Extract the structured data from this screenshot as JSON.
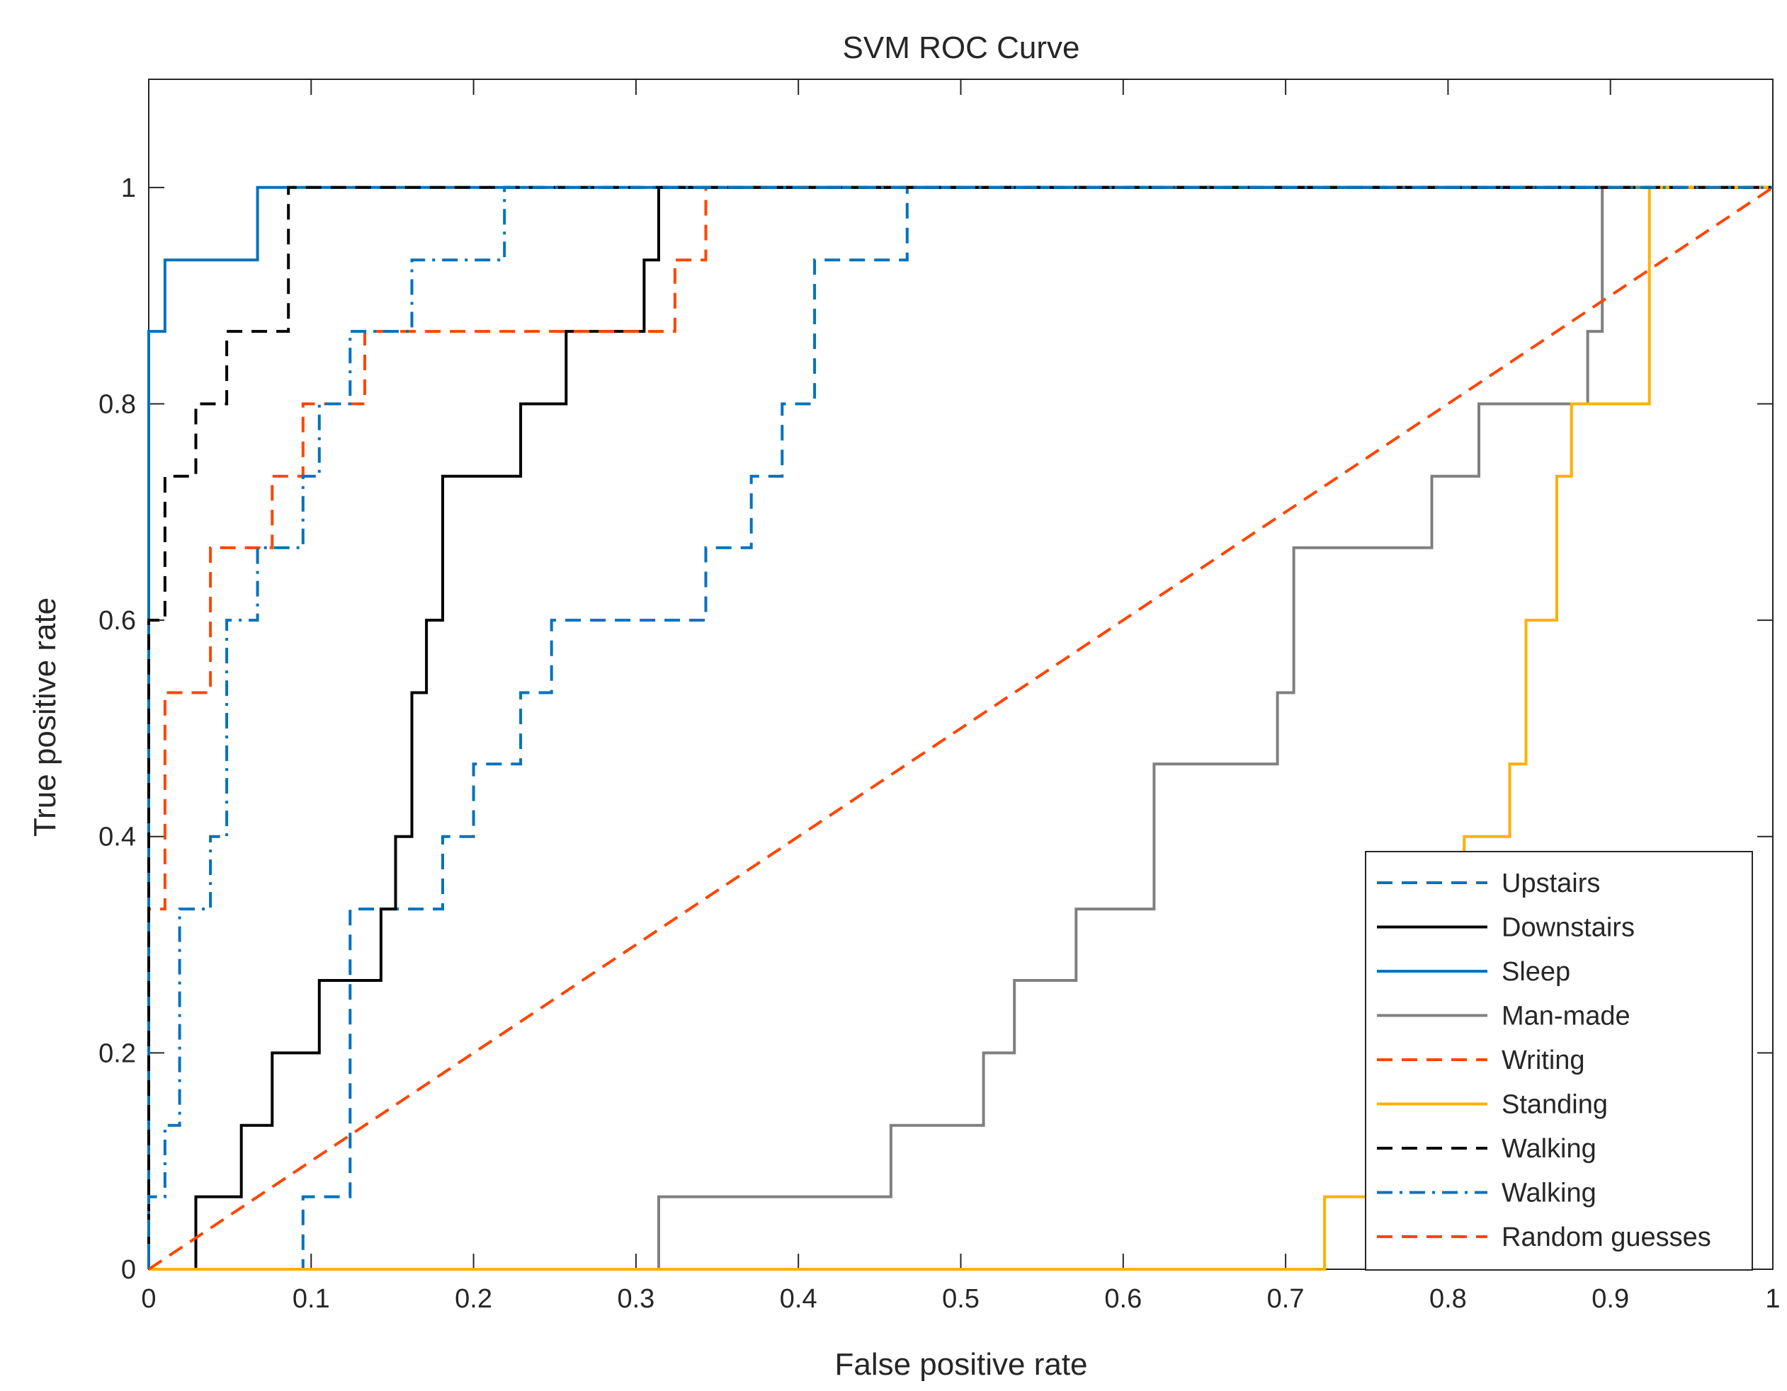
{
  "chart_data": {
    "type": "line",
    "title": "SVM ROC Curve",
    "xlabel": "False positive rate",
    "ylabel": "True positive rate",
    "xlim": [
      0,
      1
    ],
    "ylim": [
      0,
      1.1
    ],
    "xticks": [
      0,
      0.1,
      0.2,
      0.3,
      0.4,
      0.5,
      0.6,
      0.7,
      0.8,
      0.9,
      1
    ],
    "xtick_labels": [
      "0",
      "0.1",
      "0.2",
      "0.3",
      "0.4",
      "0.5",
      "0.6",
      "0.7",
      "0.8",
      "0.9",
      "1"
    ],
    "yticks": [
      0,
      0.2,
      0.4,
      0.6,
      0.8,
      1
    ],
    "ytick_labels": [
      "0",
      "0.2",
      "0.4",
      "0.6",
      "0.8",
      "1"
    ],
    "grid": false,
    "legend_position": "bottom-right",
    "series": [
      {
        "name": "Upstairs",
        "color": "#0072BD",
        "dash": "dashed",
        "x": [
          0,
          0.095,
          0.095,
          0.124,
          0.124,
          0.181,
          0.181,
          0.2,
          0.2,
          0.229,
          0.229,
          0.248,
          0.248,
          0.343,
          0.343,
          0.371,
          0.371,
          0.39,
          0.39,
          0.41,
          0.41,
          0.467,
          0.467,
          1
        ],
        "y": [
          0,
          0,
          0.067,
          0.067,
          0.333,
          0.333,
          0.4,
          0.4,
          0.467,
          0.467,
          0.533,
          0.533,
          0.6,
          0.6,
          0.667,
          0.667,
          0.733,
          0.733,
          0.8,
          0.8,
          0.933,
          0.933,
          1,
          1
        ]
      },
      {
        "name": "Downstairs",
        "color": "#000000",
        "dash": "solid",
        "x": [
          0,
          0.029,
          0.029,
          0.057,
          0.057,
          0.076,
          0.076,
          0.105,
          0.105,
          0.143,
          0.143,
          0.152,
          0.152,
          0.162,
          0.162,
          0.171,
          0.171,
          0.181,
          0.181,
          0.229,
          0.229,
          0.257,
          0.257,
          0.305,
          0.305,
          0.314,
          0.314,
          1
        ],
        "y": [
          0,
          0,
          0.067,
          0.067,
          0.133,
          0.133,
          0.2,
          0.2,
          0.267,
          0.267,
          0.333,
          0.333,
          0.4,
          0.4,
          0.533,
          0.533,
          0.6,
          0.6,
          0.733,
          0.733,
          0.8,
          0.8,
          0.867,
          0.867,
          0.933,
          0.933,
          1,
          1
        ]
      },
      {
        "name": "Sleep",
        "color": "#0072BD",
        "dash": "solid",
        "x": [
          0,
          0,
          0.01,
          0.01,
          0.067,
          0.067,
          1
        ],
        "y": [
          0,
          0.867,
          0.867,
          0.933,
          0.933,
          1,
          1
        ]
      },
      {
        "name": "Man-made",
        "color": "#808080",
        "dash": "solid",
        "x": [
          0,
          0.314,
          0.314,
          0.457,
          0.457,
          0.514,
          0.514,
          0.533,
          0.533,
          0.571,
          0.571,
          0.619,
          0.619,
          0.695,
          0.695,
          0.705,
          0.705,
          0.79,
          0.79,
          0.819,
          0.819,
          0.886,
          0.886,
          0.895,
          0.895,
          1
        ],
        "y": [
          0,
          0,
          0.067,
          0.067,
          0.133,
          0.133,
          0.2,
          0.2,
          0.267,
          0.267,
          0.333,
          0.333,
          0.467,
          0.467,
          0.533,
          0.533,
          0.667,
          0.667,
          0.733,
          0.733,
          0.8,
          0.8,
          0.867,
          0.867,
          1,
          1
        ]
      },
      {
        "name": "Writing",
        "color": "#FF4500",
        "dash": "dashed",
        "x": [
          0,
          0,
          0.01,
          0.01,
          0.038,
          0.038,
          0.076,
          0.076,
          0.095,
          0.095,
          0.133,
          0.133,
          0.324,
          0.324,
          0.343,
          0.343,
          1
        ],
        "y": [
          0,
          0.333,
          0.333,
          0.533,
          0.533,
          0.667,
          0.667,
          0.733,
          0.733,
          0.8,
          0.8,
          0.867,
          0.867,
          0.933,
          0.933,
          1,
          1
        ]
      },
      {
        "name": "Standing",
        "color": "#FFB000",
        "dash": "solid",
        "x": [
          0,
          0.724,
          0.724,
          0.752,
          0.752,
          0.771,
          0.771,
          0.79,
          0.79,
          0.81,
          0.81,
          0.838,
          0.838,
          0.848,
          0.848,
          0.867,
          0.867,
          0.876,
          0.876,
          0.924,
          0.924,
          1
        ],
        "y": [
          0,
          0,
          0.067,
          0.067,
          0.133,
          0.133,
          0.2,
          0.2,
          0.267,
          0.267,
          0.4,
          0.4,
          0.467,
          0.467,
          0.6,
          0.6,
          0.733,
          0.733,
          0.8,
          0.8,
          1,
          1
        ]
      },
      {
        "name": "Walking",
        "color": "#000000",
        "dash": "dashed",
        "x": [
          0,
          0,
          0.01,
          0.01,
          0.029,
          0.029,
          0.048,
          0.048,
          0.086,
          0.086,
          1
        ],
        "y": [
          0,
          0.6,
          0.6,
          0.733,
          0.733,
          0.8,
          0.8,
          0.867,
          0.867,
          1,
          1
        ]
      },
      {
        "name": "Walking",
        "color": "#0072BD",
        "dash": "dashdot",
        "x": [
          0,
          0,
          0.01,
          0.01,
          0.019,
          0.019,
          0.038,
          0.038,
          0.048,
          0.048,
          0.067,
          0.067,
          0.095,
          0.095,
          0.105,
          0.105,
          0.124,
          0.124,
          0.162,
          0.162,
          0.219,
          0.219,
          1
        ],
        "y": [
          0,
          0.067,
          0.067,
          0.133,
          0.133,
          0.333,
          0.333,
          0.4,
          0.4,
          0.6,
          0.6,
          0.667,
          0.667,
          0.733,
          0.733,
          0.8,
          0.8,
          0.867,
          0.867,
          0.933,
          0.933,
          1,
          1
        ]
      },
      {
        "name": "Random guesses",
        "color": "#FF4500",
        "dash": "dashed",
        "x": [
          0,
          1
        ],
        "y": [
          0,
          1
        ]
      }
    ]
  }
}
